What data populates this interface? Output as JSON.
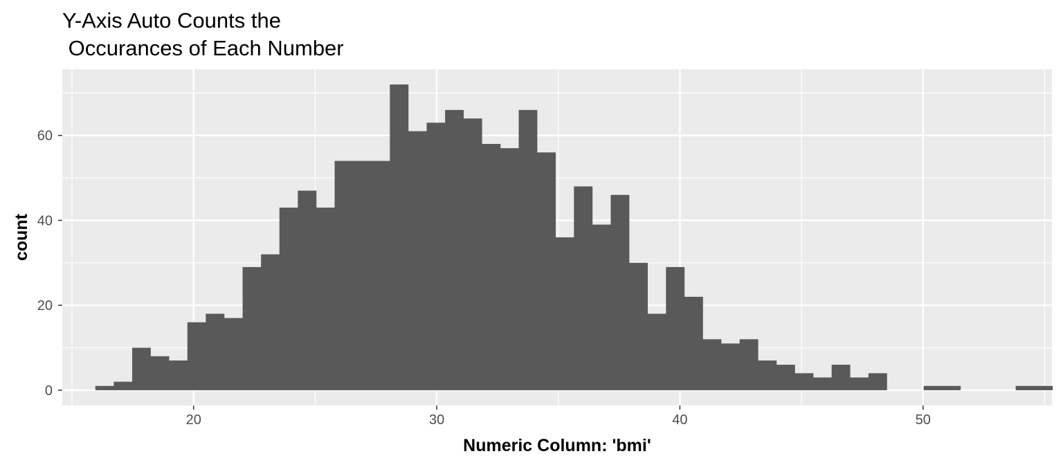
{
  "chart_data": {
    "type": "bar",
    "title": "Y-Axis Auto Counts the\n Occurances of Each Number",
    "xlabel": "Numeric Column: 'bmi'",
    "ylabel": "count",
    "xlim": [
      14.6,
      55.3
    ],
    "ylim": [
      -3.6,
      75.6
    ],
    "x_ticks": [
      20,
      30,
      40,
      50
    ],
    "y_ticks": [
      0,
      20,
      40,
      60
    ],
    "grid": true,
    "legend": "none",
    "bar_color": "#595959",
    "panel_color": "#ebebeb",
    "bin_start": 15.96,
    "bin_width": 0.757,
    "values": [
      1,
      2,
      10,
      8,
      7,
      16,
      18,
      17,
      29,
      32,
      43,
      47,
      43,
      54,
      54,
      54,
      72,
      61,
      63,
      66,
      64,
      58,
      57,
      66,
      56,
      36,
      48,
      39,
      46,
      30,
      18,
      29,
      22,
      12,
      11,
      12,
      7,
      6,
      4,
      3,
      6,
      3,
      4,
      0,
      0,
      1,
      1,
      0,
      0,
      0,
      1,
      1
    ]
  }
}
